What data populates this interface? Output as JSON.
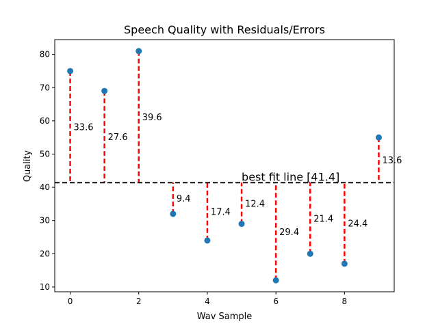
{
  "chart_data": {
    "type": "scatter",
    "title": "Speech Quality with Residuals/Errors",
    "xlabel": "Wav Sample",
    "ylabel": "Quality",
    "xlim": [
      -0.45,
      9.45
    ],
    "ylim": [
      8.55,
      84.45
    ],
    "xticks": [
      0,
      2,
      4,
      6,
      8
    ],
    "yticks": [
      10,
      20,
      30,
      40,
      50,
      60,
      70,
      80
    ],
    "x": [
      0,
      1,
      2,
      3,
      4,
      5,
      6,
      7,
      8,
      9
    ],
    "y": [
      75,
      69,
      81,
      32,
      24,
      29,
      12,
      20,
      17,
      55
    ],
    "residual_labels": [
      "33.6",
      "27.6",
      "39.6",
      "9.4",
      "17.4",
      "12.4",
      "29.4",
      "21.4",
      "24.4",
      "13.6"
    ],
    "fit_line": {
      "y": 41.4,
      "label": "best fit line [41.4]",
      "color": "#000000"
    },
    "point_color": "#1f77b4",
    "residual_color": "#ff0000",
    "grid": false
  }
}
